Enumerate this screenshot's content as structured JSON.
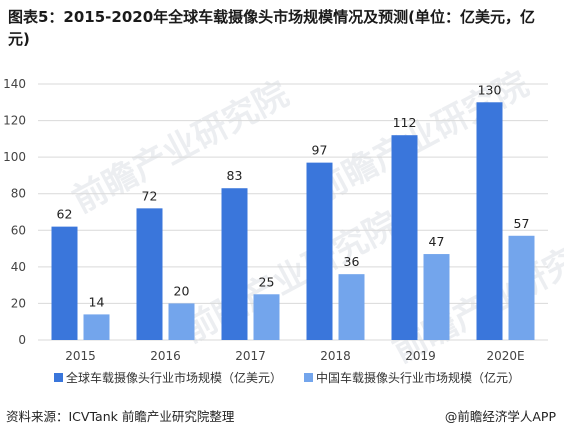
{
  "title": "图表5：2015-2020年全球车载摄像头市场规模情况及预测(单位：亿美元，亿元)",
  "source": "资料来源：ICVTank 前瞻产业研究院整理",
  "brand": "@前瞻经济学人APP",
  "watermark": "前瞻产业研究院",
  "colors": {
    "series_global": "#3a76db",
    "series_china": "#73a5ec",
    "grid": "#d9d9d9",
    "axis_text": "#444444"
  },
  "chart_data": {
    "type": "bar",
    "categories": [
      "2015",
      "2016",
      "2017",
      "2018",
      "2019",
      "2020E"
    ],
    "series": [
      {
        "name": "全球车载摄像头行业市场规模（亿美元）",
        "values": [
          62,
          72,
          83,
          97,
          112,
          130
        ]
      },
      {
        "name": "中国车载摄像头行业市场规模（亿元）",
        "values": [
          14,
          20,
          25,
          36,
          47,
          57
        ]
      }
    ],
    "ylim": [
      0,
      140
    ],
    "yticks": [
      0,
      20,
      40,
      60,
      80,
      100,
      120,
      140
    ],
    "grid": true,
    "legend": "bottom"
  }
}
